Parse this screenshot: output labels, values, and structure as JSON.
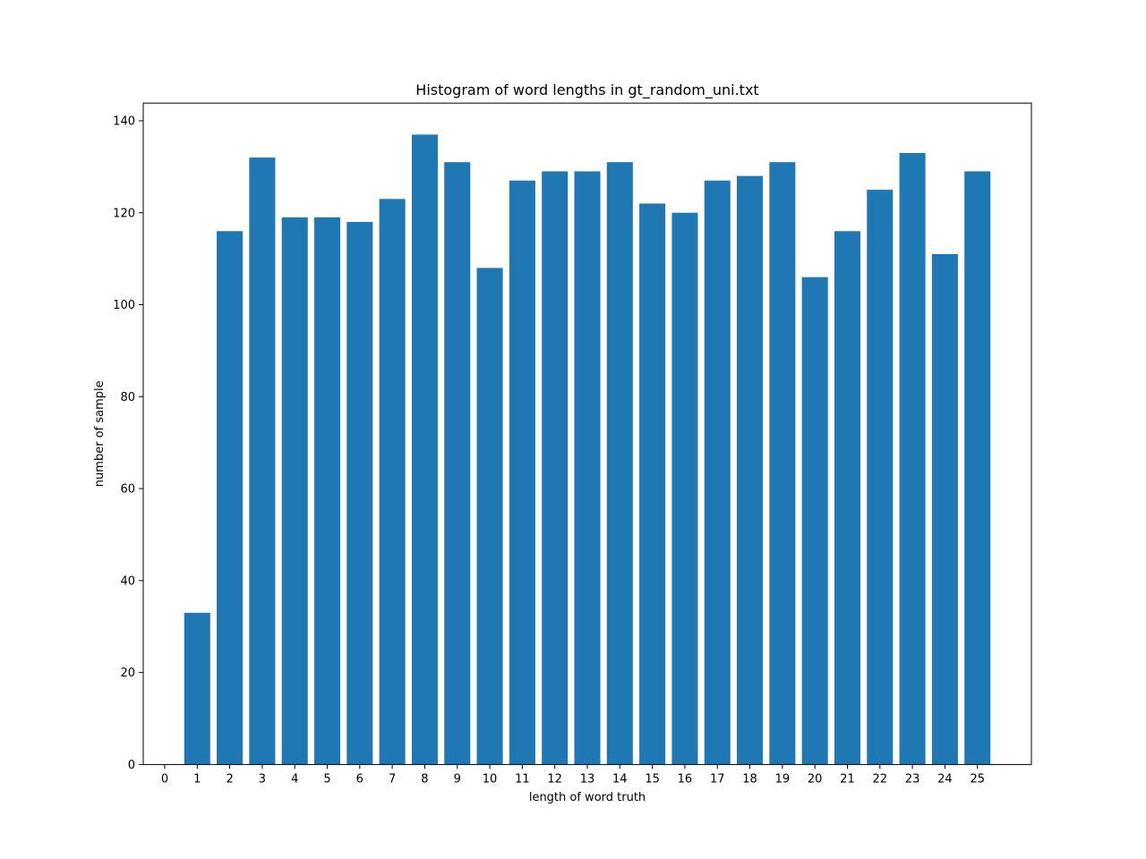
{
  "chart_data": {
    "type": "bar",
    "title": "Histogram of word lengths in gt_random_uni.txt",
    "xlabel": "length of word truth",
    "ylabel": "number of sample",
    "categories": [
      0,
      1,
      2,
      3,
      4,
      5,
      6,
      7,
      8,
      9,
      10,
      11,
      12,
      13,
      14,
      15,
      16,
      17,
      18,
      19,
      20,
      21,
      22,
      23,
      24,
      25
    ],
    "values": [
      0,
      33,
      116,
      132,
      119,
      119,
      118,
      123,
      137,
      131,
      108,
      127,
      129,
      129,
      131,
      122,
      120,
      127,
      128,
      131,
      106,
      116,
      125,
      133,
      111,
      129
    ],
    "xlim": [
      -0.66,
      26.66
    ],
    "ylim": [
      0,
      143.85
    ],
    "x_ticks": [
      "0",
      "1",
      "2",
      "3",
      "4",
      "5",
      "6",
      "7",
      "8",
      "9",
      "10",
      "11",
      "12",
      "13",
      "14",
      "15",
      "16",
      "17",
      "18",
      "19",
      "20",
      "21",
      "22",
      "23",
      "24",
      "25"
    ],
    "y_ticks": [
      0,
      20,
      40,
      60,
      80,
      100,
      120,
      140
    ],
    "bar_color": "#1f77b4",
    "grid": false,
    "legend": "none"
  }
}
